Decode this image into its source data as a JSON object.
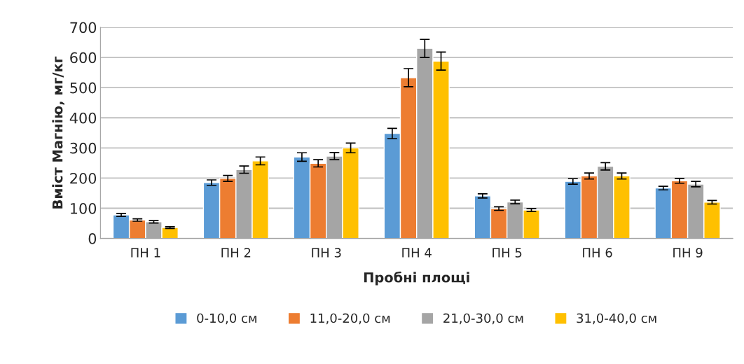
{
  "chart_data": {
    "type": "bar",
    "xlabel": "Пробні площі",
    "ylabel": "Вміст Магнію, мг/кг",
    "categories": [
      "ПН 1",
      "ПН 2",
      "ПН 3",
      "ПН 4",
      "ПН 5",
      "ПН 6",
      "ПН 9"
    ],
    "series": [
      {
        "name": "0-10,0 см",
        "color": "#5b9bd5",
        "values": [
          78,
          185,
          270,
          348,
          141,
          189,
          167
        ],
        "errors": [
          5,
          9,
          14,
          17,
          7,
          9,
          6
        ]
      },
      {
        "name": "11,0-20,0 см",
        "color": "#ed7d31",
        "values": [
          61,
          199,
          249,
          533,
          99,
          207,
          191
        ],
        "errors": [
          4,
          10,
          12,
          30,
          6,
          10,
          8
        ]
      },
      {
        "name": "21,0-30,0 см",
        "color": "#a5a5a5",
        "values": [
          55,
          228,
          273,
          630,
          121,
          239,
          180
        ],
        "errors": [
          4,
          12,
          12,
          30,
          6,
          12,
          9
        ]
      },
      {
        "name": "31,0-40,0 см",
        "color": "#ffc000",
        "values": [
          36,
          257,
          300,
          588,
          94,
          207,
          120
        ],
        "errors": [
          3,
          13,
          16,
          30,
          5,
          10,
          6
        ]
      }
    ],
    "ylim": [
      0,
      700
    ],
    "yticks": [
      0,
      100,
      200,
      300,
      400,
      500,
      600,
      700
    ],
    "grid": "y",
    "legend": "bottom"
  }
}
